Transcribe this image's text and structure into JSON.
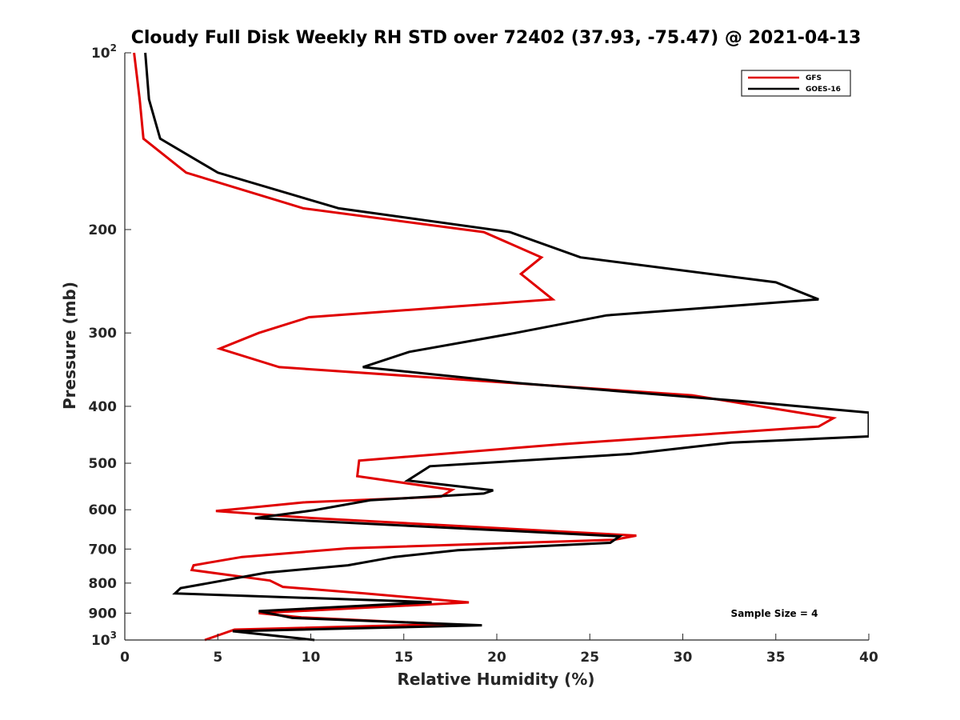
{
  "chart_data": {
    "type": "line",
    "title": "Cloudy Full Disk Weekly RH STD over 72402 (37.93, -75.47) @ 2021-04-13",
    "xlabel": "Relative Humidity (%)",
    "ylabel": "Pressure (mb)",
    "xlim": [
      0,
      40
    ],
    "ylim": [
      100,
      1000
    ],
    "yscale": "log",
    "y_reversed": true,
    "grid": false,
    "legend_position": "top-right",
    "x_ticks": [
      0,
      5,
      10,
      15,
      20,
      25,
      30,
      35,
      40
    ],
    "y_ticks": [
      {
        "value": 100,
        "label": "10",
        "sup": "2"
      },
      {
        "value": 200,
        "label": "200",
        "sup": ""
      },
      {
        "value": 300,
        "label": "300",
        "sup": ""
      },
      {
        "value": 400,
        "label": "400",
        "sup": ""
      },
      {
        "value": 500,
        "label": "500",
        "sup": ""
      },
      {
        "value": 600,
        "label": "600",
        "sup": ""
      },
      {
        "value": 700,
        "label": "700",
        "sup": ""
      },
      {
        "value": 800,
        "label": "800",
        "sup": ""
      },
      {
        "value": 900,
        "label": "900",
        "sup": ""
      },
      {
        "value": 1000,
        "label": "10",
        "sup": "3"
      }
    ],
    "series": [
      {
        "name": "GFS",
        "color": "#e00000",
        "points": [
          [
            0.5,
            100
          ],
          [
            0.8,
            120
          ],
          [
            1.0,
            140
          ],
          [
            3.3,
            160
          ],
          [
            9.6,
            184
          ],
          [
            19.3,
            202
          ],
          [
            22.4,
            223
          ],
          [
            21.3,
            238
          ],
          [
            23.0,
            263
          ],
          [
            9.9,
            282
          ],
          [
            7.2,
            300
          ],
          [
            5.1,
            319
          ],
          [
            8.3,
            343
          ],
          [
            30.5,
            383
          ],
          [
            38.1,
            419
          ],
          [
            37.3,
            433
          ],
          [
            23.5,
            464
          ],
          [
            12.6,
            495
          ],
          [
            12.5,
            526
          ],
          [
            17.6,
            555
          ],
          [
            17.0,
            570
          ],
          [
            9.6,
            583
          ],
          [
            4.9,
            603
          ],
          [
            10.1,
            620
          ],
          [
            27.5,
            664
          ],
          [
            26.3,
            675
          ],
          [
            12.0,
            698
          ],
          [
            6.3,
            722
          ],
          [
            3.7,
            746
          ],
          [
            3.6,
            760
          ],
          [
            7.8,
            792
          ],
          [
            8.5,
            812
          ],
          [
            12.9,
            833
          ],
          [
            18.5,
            863
          ],
          [
            7.2,
            900
          ],
          [
            9.5,
            915
          ],
          [
            17.3,
            940
          ],
          [
            5.9,
            960
          ],
          [
            4.3,
            1000
          ]
        ]
      },
      {
        "name": "GOES-16",
        "color": "#000000",
        "points": [
          [
            1.1,
            100
          ],
          [
            1.3,
            120
          ],
          [
            1.9,
            140
          ],
          [
            5.0,
            160
          ],
          [
            11.5,
            184
          ],
          [
            20.7,
            202
          ],
          [
            24.5,
            223
          ],
          [
            35.0,
            246
          ],
          [
            37.3,
            263
          ],
          [
            25.9,
            280
          ],
          [
            21.0,
            300
          ],
          [
            15.3,
            323
          ],
          [
            12.8,
            343
          ],
          [
            21.1,
            365
          ],
          [
            33.6,
            393
          ],
          [
            40.0,
            410
          ],
          [
            40.0,
            450
          ],
          [
            32.6,
            461
          ],
          [
            27.2,
            482
          ],
          [
            16.4,
            506
          ],
          [
            15.2,
            535
          ],
          [
            19.8,
            556
          ],
          [
            19.3,
            563
          ],
          [
            13.2,
            578
          ],
          [
            10.2,
            601
          ],
          [
            7.0,
            620
          ],
          [
            26.6,
            666
          ],
          [
            26.1,
            683
          ],
          [
            17.9,
            703
          ],
          [
            14.5,
            722
          ],
          [
            12.0,
            746
          ],
          [
            7.6,
            768
          ],
          [
            3.0,
            816
          ],
          [
            2.7,
            833
          ],
          [
            16.5,
            862
          ],
          [
            7.2,
            893
          ],
          [
            9.0,
            917
          ],
          [
            19.2,
            944
          ],
          [
            5.8,
            966
          ],
          [
            10.2,
            1000
          ]
        ]
      }
    ],
    "annotations": [
      {
        "text": "Sample Size = 4"
      }
    ]
  }
}
